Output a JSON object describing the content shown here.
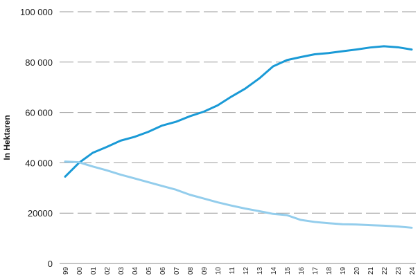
{
  "chart_data": {
    "type": "line",
    "ylabel": "In Hektaren",
    "xlabel": "",
    "ylim": [
      0,
      100000
    ],
    "grid": true,
    "y_ticks": [
      {
        "value": 0,
        "label": "0"
      },
      {
        "value": 20000,
        "label": "20000"
      },
      {
        "value": 40000,
        "label": "40 000"
      },
      {
        "value": 60000,
        "label": "60 000"
      },
      {
        "value": 80000,
        "label": "80 000"
      },
      {
        "value": 100000,
        "label": "100 000"
      }
    ],
    "categories": [
      "99",
      "00",
      "01",
      "02",
      "03",
      "04",
      "05",
      "06",
      "07",
      "08",
      "09",
      "10",
      "11",
      "12",
      "13",
      "14",
      "15",
      "16",
      "17",
      "18",
      "19",
      "20",
      "21",
      "22",
      "23",
      "24"
    ],
    "series": [
      {
        "color": "#1a9ad6",
        "values": [
          34500,
          40000,
          44000,
          46300,
          48800,
          50300,
          52300,
          54800,
          56300,
          58500,
          60300,
          62800,
          66300,
          69500,
          73500,
          78300,
          80800,
          82000,
          83100,
          83600,
          84300,
          85000,
          85800,
          86300,
          85900,
          85000
        ]
      },
      {
        "color": "#93cdec",
        "values": [
          40500,
          40200,
          38500,
          37000,
          35300,
          33800,
          32300,
          30800,
          29300,
          27300,
          25800,
          24300,
          23000,
          21800,
          20800,
          19700,
          19200,
          17300,
          16500,
          16000,
          15600,
          15500,
          15200,
          15000,
          14700,
          14200
        ]
      }
    ]
  }
}
